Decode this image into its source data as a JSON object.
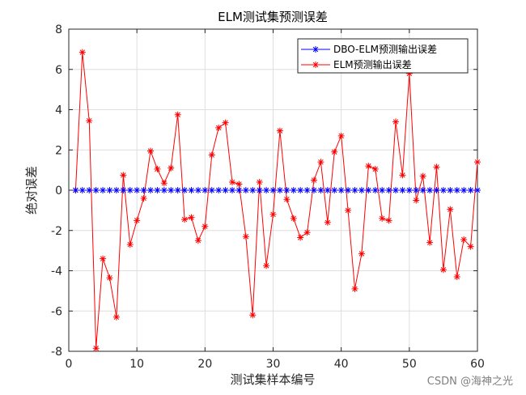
{
  "chart_data": {
    "type": "line",
    "title": "ELM测试集预测误差",
    "xlabel": "测试集样本编号",
    "ylabel": "绝对误差",
    "xlim": [
      0,
      60
    ],
    "ylim": [
      -8,
      8
    ],
    "xticks": [
      0,
      10,
      20,
      30,
      40,
      50,
      60
    ],
    "yticks": [
      -8,
      -6,
      -4,
      -2,
      0,
      2,
      4,
      6,
      8
    ],
    "grid": true,
    "legend_position": "top-right",
    "x": [
      1,
      2,
      3,
      4,
      5,
      6,
      7,
      8,
      9,
      10,
      11,
      12,
      13,
      14,
      15,
      16,
      17,
      18,
      19,
      20,
      21,
      22,
      23,
      24,
      25,
      26,
      27,
      28,
      29,
      30,
      31,
      32,
      33,
      34,
      35,
      36,
      37,
      38,
      39,
      40,
      41,
      42,
      43,
      44,
      45,
      46,
      47,
      48,
      49,
      50,
      51,
      52,
      53,
      54,
      55,
      56,
      57,
      58,
      59,
      60
    ],
    "series": [
      {
        "name": "DBO-ELM预测输出误差",
        "color": "#0000ff",
        "marker": "asterisk",
        "values": [
          0,
          0,
          0,
          0,
          0,
          0,
          0,
          0,
          0,
          0,
          0,
          0,
          0,
          0,
          0,
          0,
          0,
          0,
          0,
          0,
          0,
          0,
          0,
          0,
          0,
          0,
          0,
          0,
          0,
          0,
          0,
          0,
          0,
          0,
          0,
          0,
          0,
          0,
          0,
          0,
          0,
          0,
          0,
          0,
          0,
          0,
          0,
          0,
          0,
          0,
          0,
          0,
          0,
          0,
          0,
          0,
          0,
          0,
          0,
          0
        ]
      },
      {
        "name": "ELM预测输出误差",
        "color": "#ff0000",
        "marker": "asterisk",
        "values": [
          0.0,
          6.85,
          3.45,
          -7.85,
          -3.4,
          -4.35,
          -6.3,
          0.75,
          -2.7,
          -1.5,
          -0.4,
          1.95,
          1.05,
          0.35,
          1.1,
          3.75,
          -1.45,
          -1.35,
          -2.5,
          -1.8,
          1.75,
          3.1,
          3.35,
          0.4,
          0.3,
          -2.3,
          -6.2,
          0.4,
          -3.75,
          -1.2,
          2.95,
          -0.45,
          -1.4,
          -2.35,
          -2.1,
          0.5,
          1.4,
          -1.6,
          1.9,
          2.7,
          -1.0,
          -4.9,
          -3.15,
          1.2,
          1.05,
          -1.4,
          -1.5,
          3.4,
          0.75,
          5.8,
          -0.5,
          0.7,
          -2.6,
          1.15,
          -3.95,
          -0.95,
          -4.3,
          -2.45,
          -2.8,
          1.4
        ]
      }
    ]
  },
  "watermark": "CSDN @海神之光"
}
